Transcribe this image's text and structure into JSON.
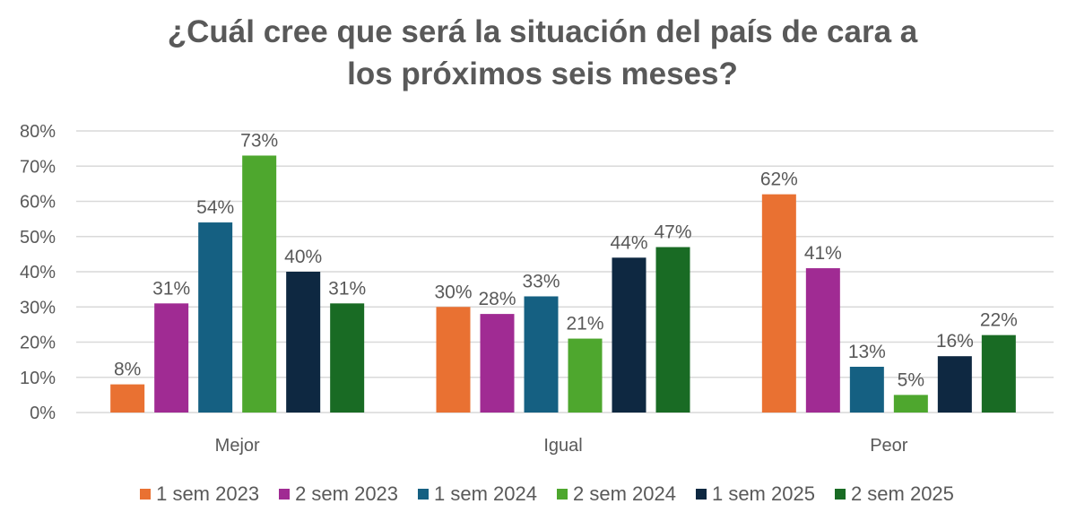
{
  "chart_data": {
    "type": "bar",
    "title_lines": [
      "¿Cuál cree que será la situación del país de cara a",
      "los próximos seis meses?"
    ],
    "categories": [
      "Mejor",
      "Igual",
      "Peor"
    ],
    "series": [
      {
        "name": "1 sem 2023",
        "color": "#E97132",
        "values": [
          8,
          30,
          62
        ]
      },
      {
        "name": "2 sem 2023",
        "color": "#A02B93",
        "values": [
          31,
          28,
          41
        ]
      },
      {
        "name": "1 sem 2024",
        "color": "#156082",
        "values": [
          54,
          33,
          13
        ]
      },
      {
        "name": "2 sem 2024",
        "color": "#4EA72E",
        "values": [
          73,
          21,
          5
        ]
      },
      {
        "name": "1 sem 2025",
        "color": "#0E2841",
        "values": [
          40,
          44,
          16
        ]
      },
      {
        "name": "2 sem 2025",
        "color": "#196B24",
        "values": [
          31,
          47,
          22
        ]
      }
    ],
    "ylim": [
      0,
      80
    ],
    "yticks": [
      "0%",
      "10%",
      "20%",
      "30%",
      "40%",
      "50%",
      "60%",
      "70%",
      "80%"
    ],
    "grid": true,
    "legend": "bottom",
    "value_suffix": "%"
  }
}
